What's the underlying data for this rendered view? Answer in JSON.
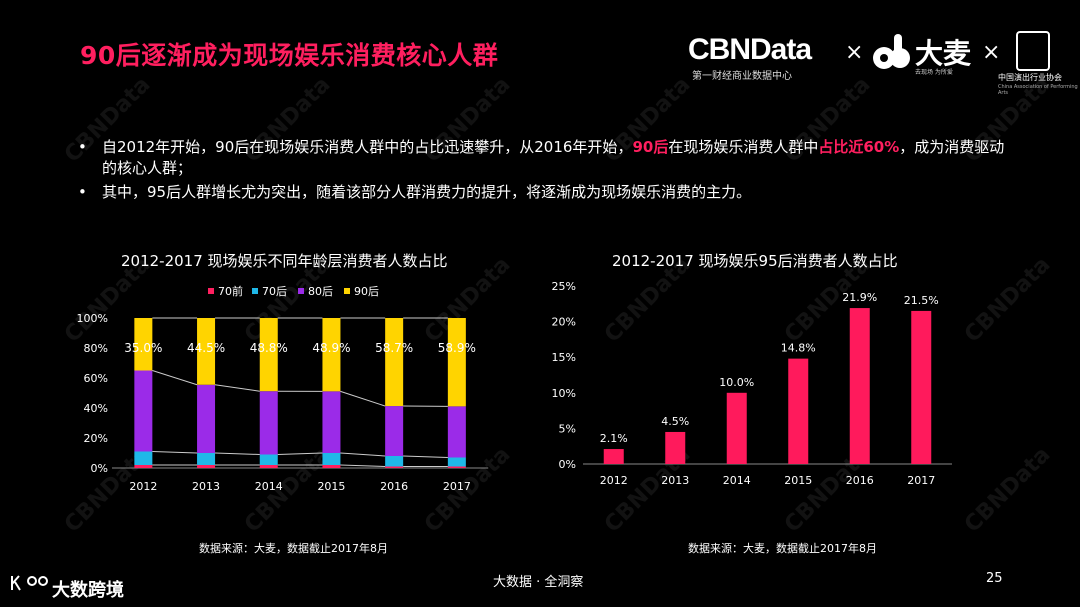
{
  "header": {
    "title": "90后逐渐成为现场娱乐消费核心人群",
    "logo_cbn": "CBNData",
    "logo_cbn_sub": "第一财经商业数据中心",
    "times_sign": "×",
    "logo_damai": "大麦",
    "logo_damai_sub": "去现场 为所爱",
    "logo_cpaa_name": "中国演出行业协会",
    "logo_cpaa_en": "China Association of Performing Arts"
  },
  "bullets": {
    "b1_part1": "自2012年开始，90后在现场娱乐消费人群中的占比迅速攀升，从2016年开始，",
    "b1_hl1": "90后",
    "b1_part2": "在现场娱乐消费人群中",
    "b1_hl2": "占比近60%",
    "b1_part3": "，成为消费驱动的核心人群；",
    "b2": "其中，95后人群增长尤为突出，随着该部分人群消费力的提升，将逐渐成为现场娱乐消费的主力。"
  },
  "watermark": "CBNData",
  "colors": {
    "accent": "#ff1f5f",
    "s70q": "#ff1f5f",
    "s70h": "#1fb8e8",
    "s80h": "#9b2be8",
    "s90h": "#ffd400",
    "bar95": "#ff1a5c"
  },
  "chart_data": [
    {
      "type": "bar",
      "stacked": true,
      "title": "2012-2017 现场娱乐不同年龄层消费者人数占比",
      "categories": [
        "2012",
        "2013",
        "2014",
        "2015",
        "2016",
        "2017"
      ],
      "series": [
        {
          "name": "70前",
          "values": [
            2,
            2,
            2,
            2,
            1,
            1
          ]
        },
        {
          "name": "70后",
          "values": [
            9,
            8,
            7,
            8,
            7,
            6
          ]
        },
        {
          "name": "80后",
          "values": [
            54,
            45.5,
            42.2,
            41.1,
            33.3,
            34.1
          ]
        },
        {
          "name": "90后",
          "values": [
            35,
            44.5,
            48.8,
            48.9,
            58.7,
            58.9
          ]
        }
      ],
      "data_labels": [
        "35.0%",
        "44.5%",
        "48.8%",
        "48.9%",
        "58.7%",
        "58.9%"
      ],
      "yticks": [
        "0%",
        "20%",
        "40%",
        "60%",
        "80%",
        "100%"
      ],
      "ylim": [
        0,
        100
      ],
      "legend": "top",
      "source": "数据来源：大麦，数据截止2017年8月"
    },
    {
      "type": "bar",
      "title": "2012-2017 现场娱乐95后消费者人数占比",
      "categories": [
        "2012",
        "2013",
        "2014",
        "2015",
        "2016",
        "2017"
      ],
      "values": [
        2.1,
        4.5,
        10.0,
        14.8,
        21.9,
        21.5
      ],
      "data_labels": [
        "2.1%",
        "4.5%",
        "10.0%",
        "14.8%",
        "21.9%",
        "21.5%"
      ],
      "yticks": [
        "0%",
        "5%",
        "10%",
        "15%",
        "20%",
        "25%"
      ],
      "ylim": [
        0,
        25
      ],
      "source": "数据来源：大麦，数据截止2017年8月"
    }
  ],
  "footer": {
    "brand": "大数跨境",
    "center": "大数据 · 全洞察",
    "page": "25"
  }
}
